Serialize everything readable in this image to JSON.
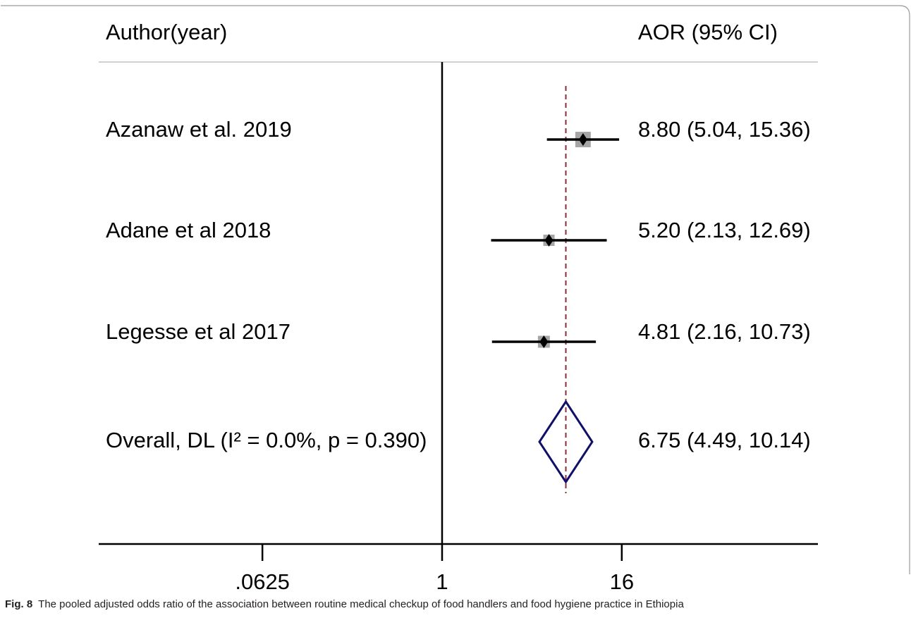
{
  "chart_data": {
    "type": "forest",
    "column_headers": [
      "Author(year)",
      "AOR (95% CI)"
    ],
    "studies": {
      "names": [
        "Azanaw et al. 2019",
        "Adane et al 2018",
        "Legesse et al 2017"
      ],
      "values": [
        8.8,
        5.2,
        4.81
      ],
      "lower": [
        5.04,
        2.13,
        2.16
      ],
      "upper": [
        15.36,
        12.69,
        10.73
      ],
      "weights": [
        47,
        25,
        28
      ],
      "value_labels": [
        "8.80 (5.04, 15.36)",
        "5.20 (2.13, 12.69)",
        "4.81 (2.16, 10.73)"
      ]
    },
    "overall": {
      "name": "Overall, DL (I² = 0.0%, p = 0.390)",
      "value": 6.75,
      "lower": 4.49,
      "upper": 10.14,
      "value_label": "6.75 (4.49, 10.14)"
    },
    "xlim": [
      0.005,
      330
    ],
    "xticks": [
      {
        "value": 0.0625,
        "label": ".0625"
      },
      1,
      16
    ],
    "log_scale": true,
    "colors": {
      "box": "#a6a6a6",
      "marker": "#000000",
      "diamond": "#10106a",
      "overall_line": "#8b2b3b"
    },
    "caption_label": "Fig. 8",
    "caption": "The pooled adjusted odds ratio of the association between routine medical checkup of food handlers and food hygiene practice in Ethiopia"
  }
}
